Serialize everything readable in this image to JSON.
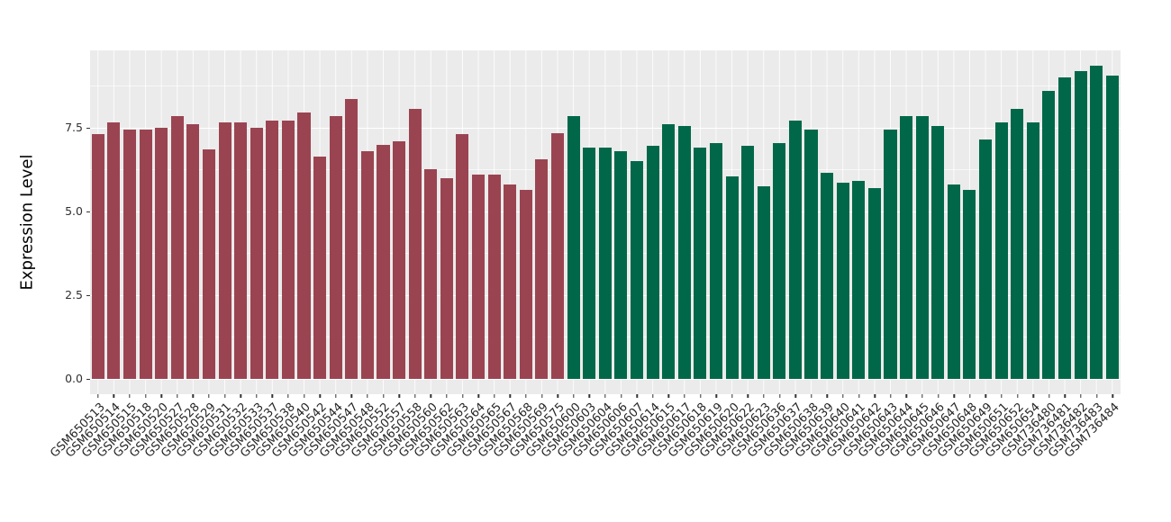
{
  "chart_data": {
    "type": "bar",
    "title": "",
    "xlabel": "",
    "ylabel": "Expression Level",
    "legend_position": "none",
    "grid": true,
    "panel_bg": "#EBEBEB",
    "gridline_color": "#FFFFFF",
    "ylim": [
      -0.47,
      9.81
    ],
    "yticks": [
      {
        "label": "0.0",
        "value": 0
      },
      {
        "label": "2.5",
        "value": 2.5
      },
      {
        "label": "5.0",
        "value": 5
      },
      {
        "label": "7.5",
        "value": 7.5
      }
    ],
    "minor_gridlines": [
      1.25,
      3.75,
      6.25,
      8.75
    ],
    "groups": [
      {
        "name": "group-red",
        "color": "#9B4451",
        "start": 0,
        "end": 29
      },
      {
        "name": "group-green",
        "color": "#006849",
        "start": 30,
        "end": 64
      }
    ],
    "categories": [
      "GSM650513",
      "GSM650514",
      "GSM650515",
      "GSM650518",
      "GSM650520",
      "GSM650527",
      "GSM650528",
      "GSM650529",
      "GSM650531",
      "GSM650532",
      "GSM650533",
      "GSM650537",
      "GSM650538",
      "GSM650540",
      "GSM650542",
      "GSM650544",
      "GSM650547",
      "GSM650548",
      "GSM650552",
      "GSM650557",
      "GSM650558",
      "GSM650560",
      "GSM650562",
      "GSM650563",
      "GSM650564",
      "GSM650565",
      "GSM650567",
      "GSM650568",
      "GSM650569",
      "GSM650575",
      "GSM650600",
      "GSM650603",
      "GSM650604",
      "GSM650606",
      "GSM650607",
      "GSM650614",
      "GSM650615",
      "GSM650617",
      "GSM650618",
      "GSM650619",
      "GSM650620",
      "GSM650622",
      "GSM650623",
      "GSM650636",
      "GSM650637",
      "GSM650638",
      "GSM650639",
      "GSM650640",
      "GSM650641",
      "GSM650642",
      "GSM650643",
      "GSM650644",
      "GSM650645",
      "GSM650646",
      "GSM650647",
      "GSM650648",
      "GSM650649",
      "GSM650651",
      "GSM650652",
      "GSM650654",
      "GSM736480",
      "GSM736481",
      "GSM736482",
      "GSM736483",
      "GSM736484"
    ],
    "values": [
      7.3,
      7.65,
      7.45,
      7.45,
      7.5,
      7.85,
      7.6,
      6.85,
      7.65,
      7.65,
      7.5,
      7.7,
      7.7,
      7.95,
      6.65,
      7.85,
      8.35,
      6.8,
      7.0,
      7.1,
      8.05,
      6.25,
      6.0,
      7.3,
      6.1,
      6.1,
      5.8,
      5.65,
      6.55,
      7.35,
      7.85,
      6.9,
      6.9,
      6.8,
      6.5,
      6.95,
      7.6,
      7.55,
      6.9,
      7.05,
      6.05,
      6.95,
      5.75,
      7.05,
      7.7,
      7.45,
      6.15,
      5.85,
      5.9,
      5.7,
      7.45,
      7.85,
      7.85,
      7.55,
      5.8,
      5.65,
      7.15,
      7.65,
      8.05,
      7.65,
      8.6,
      9.0,
      9.2,
      9.35,
      9.05
    ]
  }
}
